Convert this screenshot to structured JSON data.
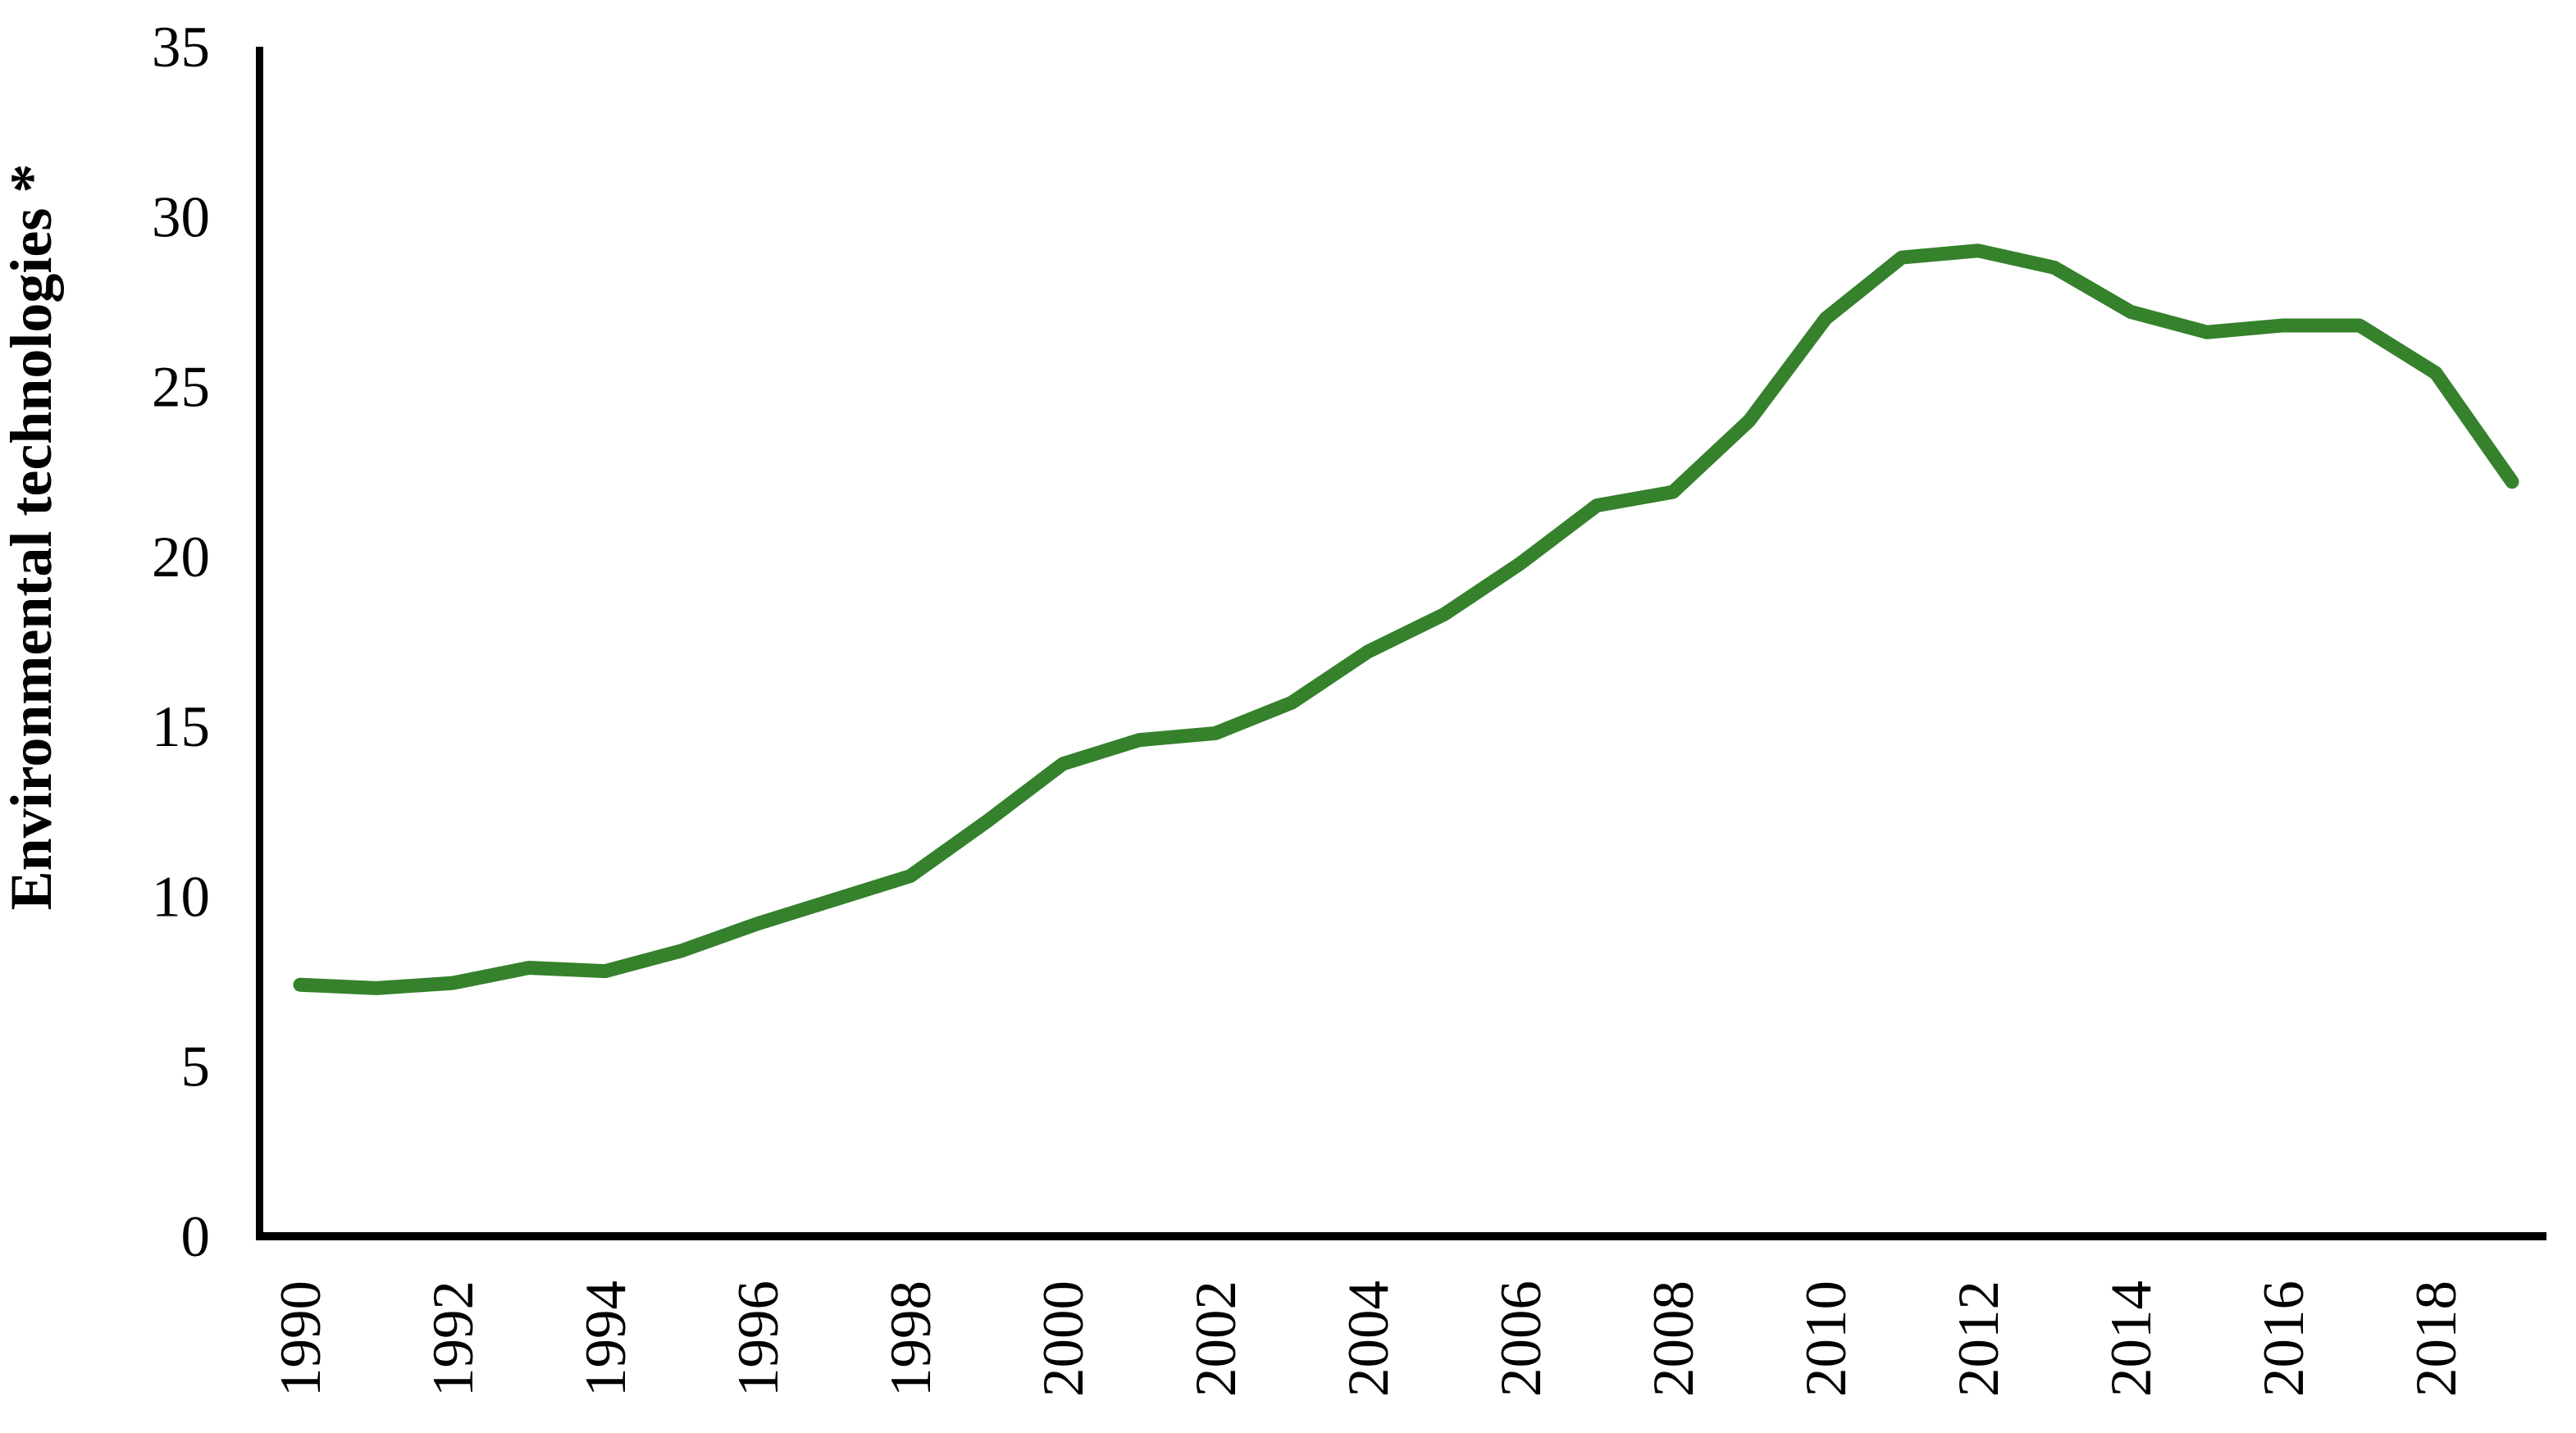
{
  "chart_data": {
    "type": "line",
    "ylabel": "Environmental technologies *",
    "xlabel": "",
    "x": [
      1990,
      1991,
      1992,
      1993,
      1994,
      1995,
      1996,
      1997,
      1998,
      1999,
      2000,
      2001,
      2002,
      2003,
      2004,
      2005,
      2006,
      2007,
      2008,
      2009,
      2010,
      2011,
      2012,
      2013,
      2014,
      2015,
      2016,
      2017,
      2018,
      2019
    ],
    "series": [
      {
        "name": "Environmental technologies",
        "color": "#35812c",
        "values": [
          7.4,
          7.3,
          7.45,
          7.9,
          7.8,
          8.4,
          9.2,
          9.9,
          10.6,
          12.2,
          13.9,
          14.6,
          14.8,
          15.7,
          17.2,
          18.3,
          19.8,
          21.5,
          21.9,
          24.0,
          27.0,
          28.8,
          29.0,
          28.5,
          27.2,
          26.6,
          26.8,
          26.8,
          25.4,
          22.2
        ]
      }
    ],
    "ylim": [
      0,
      35
    ],
    "yticks": [
      0,
      5,
      10,
      15,
      20,
      25,
      30,
      35
    ],
    "xticklabels": [
      1990,
      1992,
      1994,
      1996,
      1998,
      2000,
      2002,
      2004,
      2006,
      2008,
      2010,
      2012,
      2014,
      2016,
      2018
    ],
    "grid": false,
    "legend": false,
    "axis_color": "#000000",
    "background_color": "#ffffff"
  }
}
